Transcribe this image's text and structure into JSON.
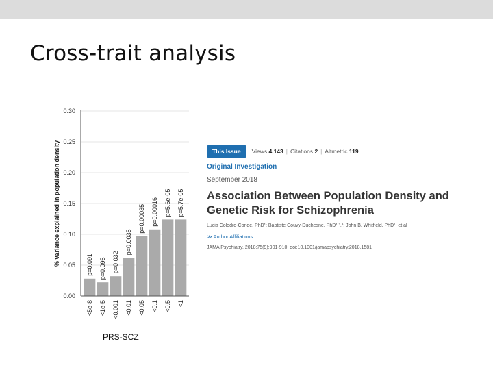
{
  "slide": {
    "title": "Cross-trait analysis"
  },
  "chart_caption": "PRS-SCZ",
  "chart_data": {
    "type": "bar",
    "ylabel": "% variance explained in population density",
    "ylim": [
      0,
      0.3
    ],
    "yticks": [
      "0.00",
      "0.05",
      "0.10",
      "0.15",
      "0.20",
      "0.25",
      "0.30"
    ],
    "ytick_values": [
      0.0,
      0.05,
      0.1,
      0.15,
      0.2,
      0.25,
      0.3
    ],
    "grid": true,
    "categories": [
      "<5e-8",
      "<1e-5",
      "<0.001",
      "<0.01",
      "<0.05",
      "<0.1",
      "<0.5",
      "<1"
    ],
    "values": [
      0.028,
      0.022,
      0.032,
      0.062,
      0.097,
      0.108,
      0.124,
      0.124
    ],
    "annotations": [
      "p=0.091",
      "p=0.095",
      "p=0.032",
      "p=0.0035",
      "p=0.00035",
      "p=0.00016",
      "p=5.6e-05",
      "p=5.7e-05"
    ],
    "bar_color": "#aaaaaa"
  },
  "article": {
    "issue_button": "This Issue",
    "views_label": "Views",
    "views_value": "4,143",
    "citations_label": "Citations",
    "citations_value": "2",
    "altmetric_label": "Altmetric",
    "altmetric_value": "119",
    "type": "Original Investigation",
    "date": "September 2018",
    "title": "Association Between Population Density and Genetic Risk for Schizophrenia",
    "authors": "Lucia Colodro-Conde, PhD¹; Baptiste Couvy-Duchesne, PhD¹,²,³; John B. Whitfield, PhD¹; et al",
    "affiliations_link": "≫ Author Affiliations",
    "citation": "JAMA Psychiatry. 2018;75(9):901-910. doi:10.1001/jamapsychiatry.2018.1581"
  },
  "colors": {
    "accent": "#1f6fb0",
    "bar": "#aaaaaa",
    "top_band": "#dcdcdc"
  }
}
